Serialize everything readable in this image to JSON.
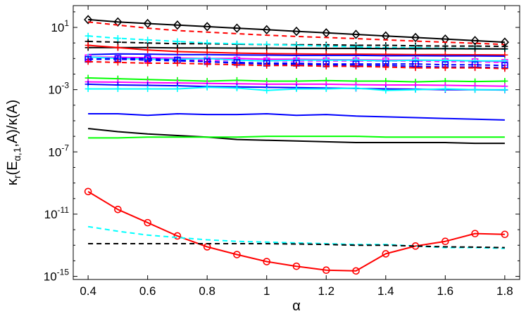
{
  "chart_data": {
    "type": "line",
    "xlabel": "α",
    "ylabel_parts": {
      "kappa": "κ",
      "sub_r": "r",
      "open": "(E",
      "sub_alpha": "α,1",
      "rest": ",A)/κ(A)"
    },
    "xlim": [
      0.35,
      1.85
    ],
    "ylim_log10": [
      -15.2,
      2.4
    ],
    "y_scale": "log",
    "x_ticks": [
      0.4,
      0.6,
      0.8,
      1,
      1.2,
      1.4,
      1.6,
      1.8
    ],
    "x_tick_labels": [
      "0.4",
      "0.6",
      "0.8",
      "1",
      "1.2",
      "1.4",
      "1.6",
      "1.8"
    ],
    "y_ticks_log10": [
      1,
      -3,
      -7,
      -11,
      -15
    ],
    "y_tick_labels": [
      {
        "base": "10",
        "exp": "1"
      },
      {
        "base": "10",
        "exp": "-3"
      },
      {
        "base": "10",
        "exp": "-7"
      },
      {
        "base": "10",
        "exp": "-11"
      },
      {
        "base": "10",
        "exp": "-15"
      }
    ],
    "grid": false,
    "x": [
      0.4,
      0.5,
      0.6,
      0.7,
      0.8,
      0.9,
      1.0,
      1.1,
      1.2,
      1.3,
      1.4,
      1.5,
      1.6,
      1.7,
      1.8
    ],
    "series": [
      {
        "color": "#000000",
        "dash": "solid",
        "marker": "diamond",
        "log10_values": [
          1.5,
          1.35,
          1.25,
          1.15,
          1.05,
          0.95,
          0.85,
          0.75,
          0.65,
          0.55,
          0.45,
          0.35,
          0.25,
          0.15,
          0.05
        ]
      },
      {
        "color": "#ff0000",
        "dash": "dashed",
        "marker": "none",
        "log10_values": [
          1.35,
          1.15,
          0.95,
          0.8,
          0.7,
          0.6,
          0.5,
          0.42,
          0.35,
          0.28,
          0.2,
          0.12,
          0.05,
          -0.02,
          -0.1
        ]
      },
      {
        "color": "#000000",
        "dash": "dashed",
        "marker": "plus",
        "log10_values": [
          0.1,
          0.05,
          0.0,
          -0.05,
          -0.05,
          -0.08,
          -0.1,
          -0.12,
          -0.12,
          -0.15,
          -0.15,
          -0.18,
          -0.2,
          -0.2,
          -0.22
        ]
      },
      {
        "color": "#00ffff",
        "dash": "dashed",
        "marker": "plus",
        "log10_values": [
          0.45,
          0.3,
          0.2,
          0.1,
          0.0,
          -0.05,
          -0.1,
          -0.15,
          -0.2,
          -0.25,
          -0.3,
          -0.3,
          -0.35,
          -0.35,
          -0.4
        ]
      },
      {
        "color": "#000000",
        "dash": "solid",
        "marker": "plus",
        "log10_values": [
          -0.3,
          -0.3,
          -0.3,
          -0.32,
          -0.32,
          -0.33,
          -0.33,
          -0.35,
          -0.35,
          -0.35,
          -0.36,
          -0.37,
          -0.37,
          -0.38,
          -0.38
        ]
      },
      {
        "color": "#ff0000",
        "dash": "solid",
        "marker": "plus",
        "log10_values": [
          -0.15,
          -0.3,
          -0.45,
          -0.55,
          -0.6,
          -0.65,
          -0.68,
          -0.7,
          -0.72,
          -0.72,
          -0.73,
          -0.75,
          -0.75,
          -0.76,
          -0.77
        ]
      },
      {
        "color": "#0000ff",
        "dash": "solid",
        "marker": "none",
        "log10_values": [
          -0.75,
          -0.7,
          -0.72,
          -0.75,
          -0.75,
          -0.77,
          -0.78,
          -0.8,
          -0.8,
          -0.8,
          -0.82,
          -0.82,
          -0.83,
          -0.83,
          -0.85
        ]
      },
      {
        "color": "#ff00ff",
        "dash": "solid",
        "marker": "plus",
        "log10_values": [
          -0.9,
          -0.92,
          -0.95,
          -0.97,
          -1.0,
          -1.0,
          -1.05,
          -1.05,
          -1.07,
          -1.08,
          -1.1,
          -1.1,
          -1.12,
          -1.15,
          -1.2
        ]
      },
      {
        "color": "#ff00ff",
        "dash": "dashed",
        "marker": "square",
        "log10_values": [
          -0.95,
          -1.0,
          -1.05,
          -1.1,
          -1.1,
          -1.1,
          -1.15,
          -1.15,
          -1.15,
          -1.15,
          -1.15,
          -1.15,
          -1.2,
          -1.2,
          -1.25
        ]
      },
      {
        "color": "#00ffff",
        "dash": "solid",
        "marker": "plus",
        "log10_values": [
          -0.9,
          -1.0,
          -1.05,
          -1.05,
          -1.0,
          -1.1,
          -1.15,
          -1.1,
          -1.1,
          -1.1,
          -1.15,
          -1.1,
          -1.12,
          -1.15,
          -1.15
        ]
      },
      {
        "color": "#0000ff",
        "dash": "dashed",
        "marker": "square",
        "log10_values": [
          -1.05,
          -1.0,
          -1.0,
          -1.1,
          -1.2,
          -1.25,
          -1.3,
          -1.3,
          -1.35,
          -1.35,
          -1.35,
          -1.35,
          -1.4,
          -1.4,
          -1.45
        ]
      },
      {
        "color": "#0000ff",
        "dash": "dashed",
        "marker": "plus",
        "log10_values": [
          -1.05,
          -1.05,
          -1.1,
          -1.15,
          -1.2,
          -1.3,
          -1.35,
          -1.4,
          -1.4,
          -1.45,
          -1.45,
          -1.5,
          -1.55,
          -1.55,
          -1.6
        ]
      },
      {
        "color": "#ff0000",
        "dash": "dashed",
        "marker": "plus",
        "log10_values": [
          -1.2,
          -1.25,
          -1.3,
          -1.3,
          -1.35,
          -1.4,
          -1.45,
          -1.45,
          -1.5,
          -1.5,
          -1.55,
          -1.6,
          -1.6,
          -1.6,
          -1.65
        ]
      },
      {
        "color": "#00ff00",
        "dash": "solid",
        "marker": "plus",
        "log10_values": [
          -2.25,
          -2.3,
          -2.35,
          -2.4,
          -2.45,
          -2.4,
          -2.45,
          -2.45,
          -2.42,
          -2.45,
          -2.45,
          -2.5,
          -2.45,
          -2.48,
          -2.45
        ]
      },
      {
        "color": "#ff00ff",
        "dash": "solid",
        "marker": "plus",
        "log10_values": [
          -2.5,
          -2.52,
          -2.55,
          -2.57,
          -2.6,
          -2.62,
          -2.65,
          -2.65,
          -2.65,
          -2.68,
          -2.7,
          -2.7,
          -2.72,
          -2.75,
          -2.78
        ]
      },
      {
        "color": "#0000ff",
        "dash": "solid",
        "marker": "plus",
        "log10_values": [
          -2.65,
          -2.7,
          -2.72,
          -2.75,
          -2.8,
          -2.82,
          -2.85,
          -2.87,
          -2.9,
          -2.92,
          -2.95,
          -2.97,
          -3.0,
          -3.0,
          -3.02
        ]
      },
      {
        "color": "#00ffff",
        "dash": "solid",
        "marker": "plus",
        "log10_values": [
          -2.95,
          -2.95,
          -2.95,
          -2.95,
          -2.85,
          -2.9,
          -3.05,
          -2.95,
          -2.95,
          -2.9,
          -3.05,
          -3.0,
          -2.95,
          -3.0,
          -3.0
        ]
      },
      {
        "color": "#0000ff",
        "dash": "solid",
        "marker": "none",
        "log10_values": [
          -4.55,
          -4.55,
          -4.65,
          -4.55,
          -4.6,
          -4.6,
          -4.55,
          -4.65,
          -4.6,
          -4.7,
          -4.75,
          -4.8,
          -4.85,
          -4.9,
          -4.95
        ]
      },
      {
        "color": "#000000",
        "dash": "solid",
        "marker": "none",
        "log10_values": [
          -5.5,
          -5.7,
          -5.85,
          -5.95,
          -6.05,
          -6.2,
          -6.25,
          -6.3,
          -6.35,
          -6.4,
          -6.4,
          -6.4,
          -6.4,
          -6.45,
          -6.45
        ]
      },
      {
        "color": "#00ff00",
        "dash": "solid",
        "marker": "none",
        "log10_values": [
          -6.1,
          -6.1,
          -6.05,
          -6.05,
          -6.05,
          -6.05,
          -6.0,
          -6.0,
          -6.0,
          -6.0,
          -6.05,
          -6.05,
          -6.05,
          -6.05,
          -6.05
        ]
      },
      {
        "color": "#ff0000",
        "dash": "solid",
        "marker": "circle",
        "log10_values": [
          -9.55,
          -10.7,
          -11.55,
          -12.4,
          -13.1,
          -13.6,
          -14.05,
          -14.35,
          -14.6,
          -14.65,
          -13.55,
          -13.05,
          -12.75,
          -12.25,
          -12.3
        ]
      },
      {
        "color": "#00ffff",
        "dash": "dashed",
        "marker": "none",
        "log10_values": [
          -11.8,
          -12.1,
          -12.35,
          -12.5,
          -12.65,
          -12.75,
          -12.8,
          -12.85,
          -12.9,
          -12.95,
          -12.95,
          -13.05,
          -13.15,
          -13.15,
          -13.2
        ]
      },
      {
        "color": "#000000",
        "dash": "dashed",
        "marker": "none",
        "log10_values": [
          -12.9,
          -12.9,
          -12.9,
          -12.9,
          -12.9,
          -12.9,
          -12.9,
          -12.92,
          -12.95,
          -13.0,
          -13.0,
          -13.05,
          -13.1,
          -13.12,
          -13.15
        ]
      }
    ]
  }
}
